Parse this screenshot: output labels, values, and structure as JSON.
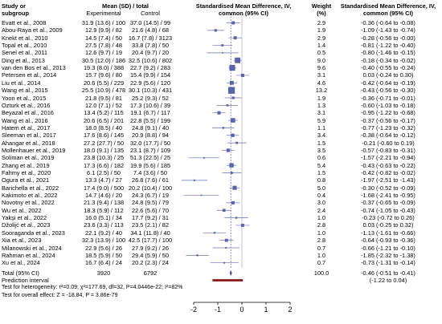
{
  "chart_data": {
    "type": "forest",
    "headers": {
      "study": "Study or",
      "subgroup": "subgroup",
      "mean_sd_total": "Mean (SD) / total",
      "experimental": "Experimental",
      "control": "Control",
      "effect_col1": "Standardised Mean Difference, IV,",
      "effect_col2": "common (95% CI)",
      "weight": "Weight",
      "weight_unit": "(%)",
      "smd_col1": "Standardised Mean Difference, IV,",
      "smd_col2": "common (95% CI)"
    },
    "studies": [
      {
        "name": "Evatt et al., 2008",
        "exp": "31.9 (13.6) / 100",
        "ctrl": "37.0 (14.5) / 99",
        "weight": "2.9",
        "ci_text": "-0.36 (-0.64 to -0.08)",
        "smd": -0.36,
        "lo": -0.64,
        "hi": -0.08,
        "w": 2.9
      },
      {
        "name": "Abou-Raya et al., 2009",
        "exp": "12.9 (9.9) / 82",
        "ctrl": "21.6 (4.8) / 68",
        "weight": "1.9",
        "ci_text": "-1.09 (-1.43 to -0.74)",
        "smd": -1.09,
        "lo": -1.43,
        "hi": -0.74,
        "w": 1.9
      },
      {
        "name": "Knekt et al., 2010",
        "exp": "14.5 (7.4) / 50",
        "ctrl": "16.7 (7.8) / 3123",
        "weight": "2.9",
        "ci_text": "-0.28 (-0.56 to -0.00)",
        "smd": -0.28,
        "lo": -0.56,
        "hi": -0.0,
        "w": 2.9
      },
      {
        "name": "Topal et al., 2010",
        "exp": "27.5 (7.8) / 48",
        "ctrl": "33.8 (7.8) / 50",
        "weight": "1.4",
        "ci_text": "-0.81 (-1.22 to -0.40)",
        "smd": -0.81,
        "lo": -1.22,
        "hi": -0.4,
        "w": 1.4
      },
      {
        "name": "Senel et al., 2011",
        "exp": "12.6 (9.7) / 19",
        "ctrl": "20.4 (9.7) / 20",
        "weight": "0.5",
        "ci_text": "-0.80 (-1.46 to -0.15)",
        "smd": -0.8,
        "lo": -1.46,
        "hi": -0.15,
        "w": 0.5
      },
      {
        "name": "Ding et al., 2013",
        "exp": "30.5 (12.0) / 186",
        "ctrl": "32.5 (10.6) / 802",
        "weight": "9.0",
        "ci_text": "-0.18 (-0.34 to -0.02)",
        "smd": -0.18,
        "lo": -0.34,
        "hi": -0.02,
        "w": 9.0
      },
      {
        "name": "van den Bos et al., 2013",
        "exp": "19.3 (8.0) / 388",
        "ctrl": "22.7 (9.2) / 283",
        "weight": "9.6",
        "ci_text": "-0.40 (-0.55 to -0.24)",
        "smd": -0.4,
        "lo": -0.55,
        "hi": -0.24,
        "w": 9.6
      },
      {
        "name": "Petersen et al., 2014",
        "exp": "15.7 (9.6) / 80",
        "ctrl": "15.4 (9.9) / 154",
        "weight": "3.1",
        "ci_text": "0.03 (-0.24 to 0.30)",
        "smd": 0.03,
        "lo": -0.24,
        "hi": 0.3,
        "w": 3.1
      },
      {
        "name": "Liu et al., 2014",
        "exp": "20.6 (5.5) / 229",
        "ctrl": "22.9 (5.6) / 120",
        "weight": "4.6",
        "ci_text": "-0.42 (-0.64 to -0.19)",
        "smd": -0.42,
        "lo": -0.64,
        "hi": -0.19,
        "w": 4.6
      },
      {
        "name": "Wang et al., 2015",
        "exp": "25.5 (10.9) / 478",
        "ctrl": "30.1 (10.3) / 431",
        "weight": "13.2",
        "ci_text": "-0.43 (-0.56 to -0.30)",
        "smd": -0.43,
        "lo": -0.56,
        "hi": -0.3,
        "w": 13.2
      },
      {
        "name": "Yoon et al., 2015",
        "exp": "21.8 (9.5) / 81",
        "ctrl": "25.2 (9.3) / 52",
        "weight": "1.9",
        "ci_text": "-0.36 (-0.71 to -0.01)",
        "smd": -0.36,
        "lo": -0.71,
        "hi": -0.01,
        "w": 1.9
      },
      {
        "name": "Ozturk et al., 2016",
        "exp": "12.0 (7.1) / 52",
        "ctrl": "17.3 (10.6) / 39",
        "weight": "1.3",
        "ci_text": "-0.60 (-1.03 to -0.18)",
        "smd": -0.6,
        "lo": -1.03,
        "hi": -0.18,
        "w": 1.3
      },
      {
        "name": "Beyazal et al., 2016",
        "exp": "13.4 (5.2) / 115",
        "ctrl": "19.1 (6.7) / 117",
        "weight": "3.1",
        "ci_text": "-0.95 (-1.22 to -0.68)",
        "smd": -0.95,
        "lo": -1.22,
        "hi": -0.68,
        "w": 3.1
      },
      {
        "name": "Wang et al., 2016",
        "exp": "20.6 (6.5) / 201",
        "ctrl": "22.8 (5.5) / 199",
        "weight": "5.9",
        "ci_text": "-0.37 (-0.56 to -0.17)",
        "smd": -0.37,
        "lo": -0.56,
        "hi": -0.17,
        "w": 5.9
      },
      {
        "name": "Hatem et al., 2017",
        "exp": "18.0 (8.5) / 40",
        "ctrl": "24.8 (9.1) / 40",
        "weight": "1.1",
        "ci_text": "-0.77 (-1.23 to -0.32)",
        "smd": -0.77,
        "lo": -1.23,
        "hi": -0.32,
        "w": 1.1
      },
      {
        "name": "Sleeman et al., 2017",
        "exp": "17.6 (8.6) / 145",
        "ctrl": "20.9 (8.8) / 94",
        "weight": "3.4",
        "ci_text": "-0.38 (-0.64 to -0.12)",
        "smd": -0.38,
        "lo": -0.64,
        "hi": -0.12,
        "w": 3.4
      },
      {
        "name": "Ahangar et al., 2018",
        "exp": "27.2 (27.7) / 50",
        "ctrl": "32.0 (17.7) / 50",
        "weight": "1.5",
        "ci_text": "-0.21 (-0.60 to 0.19)",
        "smd": -0.21,
        "lo": -0.6,
        "hi": 0.19,
        "w": 1.5
      },
      {
        "name": "Mollenhauer et al., 2019",
        "exp": "18.0 (9.1) / 135",
        "ctrl": "23.1 (8.7) / 109",
        "weight": "3.5",
        "ci_text": "-0.57 (-0.83 to -0.31)",
        "smd": -0.57,
        "lo": -0.83,
        "hi": -0.31,
        "w": 3.5
      },
      {
        "name": "Soliman et al., 2019",
        "exp": "23.8 (10.3) / 25",
        "ctrl": "51.3 (22.5) / 25",
        "weight": "0.6",
        "ci_text": "-1.57 (-2.21 to -0.94)",
        "smd": -1.57,
        "lo": -2.21,
        "hi": -0.94,
        "w": 0.6
      },
      {
        "name": "Zhang et al., 2019",
        "exp": "17.3 (6.6) / 182",
        "ctrl": "19.9 (5.6) / 185",
        "weight": "5.4",
        "ci_text": "-0.43 (-0.63 to -0.22)",
        "smd": -0.43,
        "lo": -0.63,
        "hi": -0.22,
        "w": 5.4
      },
      {
        "name": "Fahmy et al., 2020",
        "exp": "6.1 (2.5) / 50",
        "ctrl": "7.4 (3.6) / 50",
        "weight": "1.5",
        "ci_text": "-0.42 (-0.82 to -0.02)",
        "smd": -0.42,
        "lo": -0.82,
        "hi": -0.02,
        "w": 1.5
      },
      {
        "name": "Ogura et al., 2021",
        "exp": "13.3 (4.7) / 27",
        "ctrl": "26.8 (7.6) / 61",
        "weight": "0.8",
        "ci_text": "-1.97 (-2.51 to -1.43)",
        "smd": -1.97,
        "lo": -2.51,
        "hi": -1.43,
        "w": 0.8
      },
      {
        "name": "Barichella et al., 2022",
        "exp": "17.4 (9.0) / 500",
        "ctrl": "20.2 (10.4) / 100",
        "weight": "5.0",
        "ci_text": "-0.30 (-0.52 to -0.09)",
        "smd": -0.3,
        "lo": -0.52,
        "hi": -0.09,
        "w": 5.0
      },
      {
        "name": "Kakimoto et al., 2022",
        "exp": "14.7 (4.6) / 20",
        "ctrl": "24.3 (6.7) / 19",
        "weight": "0.4",
        "ci_text": "-1.68 (-2.41 to -0.95)",
        "smd": -1.68,
        "lo": -2.41,
        "hi": -0.95,
        "w": 0.4
      },
      {
        "name": "Novotny et al., 2022",
        "exp": "21.3 (9.4) / 138",
        "ctrl": "24.8 (9.5) / 79",
        "weight": "3.0",
        "ci_text": "-0.37 (-0.65 to -0.09)",
        "smd": -0.37,
        "lo": -0.65,
        "hi": -0.09,
        "w": 3.0
      },
      {
        "name": "Wu et al., 2022",
        "exp": "18.3 (5.9) / 112",
        "ctrl": "22.6 (5.6) / 70",
        "weight": "2.4",
        "ci_text": "-0.74 (-1.05 to -0.43)",
        "smd": -0.74,
        "lo": -1.05,
        "hi": -0.43,
        "w": 2.4
      },
      {
        "name": "Yakşi et al., 2022",
        "exp": "16.0 (5.1) / 34",
        "ctrl": "17.7 (9.2) / 31",
        "weight": "1.0",
        "ci_text": "-0.23 (-0.72 to 0.26)",
        "smd": -0.23,
        "lo": -0.72,
        "hi": 0.26,
        "w": 1.0
      },
      {
        "name": "Džolijć et al., 2023",
        "exp": "23.6 (3.3) / 113",
        "ctrl": "23.5 (2.1) / 82",
        "weight": "2.8",
        "ci_text": "0.03 (-0.25 to 0.32)",
        "smd": 0.03,
        "lo": -0.25,
        "hi": 0.32,
        "w": 2.8
      },
      {
        "name": "Sooraganda et al., 2023",
        "exp": "22.1 (9.2) / 40",
        "ctrl": "34.1 (11.8) / 40",
        "weight": "1.0",
        "ci_text": "-1.13 (-1.61 to -0.66)",
        "smd": -1.13,
        "lo": -1.61,
        "hi": -0.66,
        "w": 1.0
      },
      {
        "name": "Xia et al., 2023",
        "exp": "32.3 (13.9) / 100",
        "ctrl": "42.5 (17.7) / 100",
        "weight": "2.8",
        "ci_text": "-0.64 (-0.93 to -0.36)",
        "smd": -0.64,
        "lo": -0.93,
        "hi": -0.36,
        "w": 2.8
      },
      {
        "name": "Milanowski et al., 2024",
        "exp": "22.9 (5.6) / 26",
        "ctrl": "27.9 (9.2) / 26",
        "weight": "0.7",
        "ci_text": "-0.66 (-1.21 to -0.10)",
        "smd": -0.66,
        "lo": -1.21,
        "hi": -0.1,
        "w": 0.7
      },
      {
        "name": "Rahman et al., 2024",
        "exp": "18.5 (5.9) / 50",
        "ctrl": "29.4 (5.9) / 50",
        "weight": "1.0",
        "ci_text": "-1.85 (-2.32 to -1.38)",
        "smd": -1.85,
        "lo": -2.32,
        "hi": -1.38,
        "w": 1.0
      },
      {
        "name": "Xu et al., 2024",
        "exp": "16.7 (6.4) / 24",
        "ctrl": "20.2 (2.3) / 24",
        "weight": "0.7",
        "ci_text": "-0.73 (-1.31 to -0.14)",
        "smd": -0.73,
        "lo": -1.31,
        "hi": -0.14,
        "w": 0.7
      }
    ],
    "total": {
      "label": "Total (95% CI)",
      "exp_n": "3920",
      "ctrl_n": "6792",
      "weight": "100.0",
      "ci_text": "-0.46 (-0.51 to -0.41)",
      "smd": -0.46,
      "lo": -0.51,
      "hi": -0.41
    },
    "prediction": {
      "label": "Prediction interval",
      "ci_text": "(-1.22 to 0.04)",
      "lo": -1.22,
      "hi": 0.04
    },
    "heterogeneity": "Test for heterogeneity: τ²=0.09; χ²=177.69, df=32, P=4.0446e-22; I²=82%",
    "overall_effect": "Test for overall effect: Z = -18.84, P = 3.86e-79",
    "xlim": [
      -2,
      2
    ],
    "xticks": [
      "-2",
      "-1",
      "0",
      "1",
      "2"
    ],
    "colors": {
      "square": "#5b62a8",
      "diamond": "#4a4f96",
      "prediction": "#8b1a1a",
      "dashed": "#5b62a8"
    }
  }
}
